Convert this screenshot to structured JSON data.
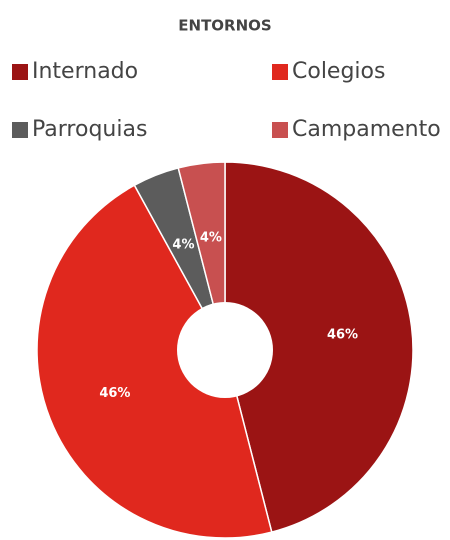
{
  "chart_data": {
    "type": "pie",
    "title": "ENTORNOS",
    "categories": [
      "Internado",
      "Colegios",
      "Parroquias",
      "Campamento"
    ],
    "values": [
      46,
      46,
      4,
      4
    ],
    "value_labels": [
      "46%",
      "46%",
      "4%",
      "4%"
    ],
    "colors": [
      "#9b1414",
      "#e0281e",
      "#5c5c5c",
      "#c85050"
    ],
    "donut": true
  }
}
